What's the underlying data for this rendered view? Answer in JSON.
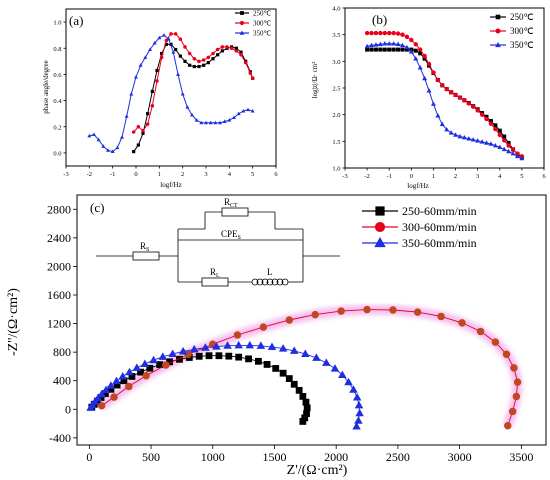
{
  "chart_data": [
    {
      "id": "a",
      "type": "line",
      "panel_label": "(a)",
      "xlabel": "logf/Hz",
      "ylabel": "phase angle/degree",
      "xlim": [
        -3,
        6
      ],
      "ylim": [
        -0.1,
        1.1
      ],
      "xticks": [
        -3,
        -2,
        -1,
        0,
        1,
        2,
        3,
        4,
        5,
        6
      ],
      "yticks": [
        0.0,
        0.2,
        0.4,
        0.6,
        0.8,
        1.0
      ],
      "ytick_labels": [
        "0.0",
        "0.2",
        "0.4",
        "0.6",
        "0.8",
        "1.0"
      ],
      "legend": "top-right",
      "series": [
        {
          "name": "250℃",
          "color": "#000000",
          "marker": "square",
          "x": [
            -0.1,
            0.1,
            0.3,
            0.5,
            0.7,
            0.9,
            1.1,
            1.3,
            1.5,
            1.7,
            1.9,
            2.1,
            2.3,
            2.5,
            2.7,
            2.9,
            3.1,
            3.3,
            3.5,
            3.7,
            3.9,
            4.1,
            4.3,
            4.5,
            4.7,
            4.9,
            5.0
          ],
          "y": [
            0.01,
            0.06,
            0.15,
            0.3,
            0.47,
            0.63,
            0.76,
            0.83,
            0.83,
            0.79,
            0.74,
            0.7,
            0.67,
            0.66,
            0.66,
            0.67,
            0.69,
            0.72,
            0.75,
            0.78,
            0.8,
            0.81,
            0.8,
            0.77,
            0.7,
            0.62,
            0.57
          ]
        },
        {
          "name": "300℃",
          "color": "#e8001c",
          "marker": "circle",
          "x": [
            -0.1,
            0.1,
            0.3,
            0.5,
            0.7,
            0.9,
            1.1,
            1.3,
            1.5,
            1.7,
            1.9,
            2.1,
            2.3,
            2.5,
            2.7,
            2.9,
            3.1,
            3.3,
            3.5,
            3.7,
            3.9,
            4.1,
            4.3,
            4.5,
            4.7,
            4.9,
            5.0
          ],
          "y": [
            0.16,
            0.2,
            0.17,
            0.22,
            0.36,
            0.55,
            0.73,
            0.86,
            0.91,
            0.91,
            0.87,
            0.81,
            0.76,
            0.72,
            0.7,
            0.71,
            0.73,
            0.76,
            0.79,
            0.81,
            0.81,
            0.8,
            0.78,
            0.75,
            0.69,
            0.61,
            0.57
          ]
        },
        {
          "name": "350℃",
          "color": "#1f2ee0",
          "marker": "triangle",
          "x": [
            -2.0,
            -1.8,
            -1.6,
            -1.4,
            -1.2,
            -1.0,
            -0.8,
            -0.6,
            -0.4,
            -0.2,
            0.0,
            0.2,
            0.4,
            0.6,
            0.8,
            1.0,
            1.2,
            1.4,
            1.6,
            1.8,
            2.0,
            2.2,
            2.4,
            2.6,
            2.8,
            3.0,
            3.2,
            3.4,
            3.6,
            3.8,
            4.0,
            4.2,
            4.4,
            4.6,
            4.8,
            5.0
          ],
          "y": [
            0.13,
            0.14,
            0.1,
            0.05,
            0.02,
            0.01,
            0.04,
            0.12,
            0.28,
            0.45,
            0.58,
            0.67,
            0.73,
            0.79,
            0.84,
            0.88,
            0.9,
            0.87,
            0.77,
            0.6,
            0.45,
            0.35,
            0.29,
            0.25,
            0.23,
            0.23,
            0.23,
            0.23,
            0.23,
            0.24,
            0.25,
            0.27,
            0.3,
            0.32,
            0.33,
            0.32
          ]
        }
      ]
    },
    {
      "id": "b",
      "type": "line",
      "panel_label": "(b)",
      "xlabel": "logf/Hz",
      "ylabel": "log|z|/Ω· cm²",
      "xlim": [
        -3,
        6
      ],
      "ylim": [
        1.0,
        4.0
      ],
      "xticks": [
        -3,
        -2,
        -1,
        0,
        1,
        2,
        3,
        4,
        5,
        6
      ],
      "yticks": [
        1.0,
        1.5,
        2.0,
        2.5,
        3.0,
        3.5,
        4.0
      ],
      "ytick_labels": [
        "1.0",
        "1.5",
        "2.0",
        "2.5",
        "3.0",
        "3.5",
        "4.0"
      ],
      "legend": "top-right",
      "series": [
        {
          "name": "250℃",
          "color": "#000000",
          "marker": "square",
          "x": [
            -2.0,
            -1.8,
            -1.6,
            -1.4,
            -1.2,
            -1.0,
            -0.8,
            -0.6,
            -0.4,
            -0.2,
            0.0,
            0.2,
            0.4,
            0.6,
            0.8,
            1.0,
            1.2,
            1.4,
            1.6,
            1.8,
            2.0,
            2.2,
            2.4,
            2.6,
            2.8,
            3.0,
            3.2,
            3.4,
            3.6,
            3.8,
            4.0,
            4.2,
            4.4,
            4.6,
            4.8,
            5.0
          ],
          "y": [
            3.22,
            3.22,
            3.22,
            3.22,
            3.22,
            3.22,
            3.22,
            3.22,
            3.22,
            3.22,
            3.22,
            3.2,
            3.15,
            3.05,
            2.92,
            2.78,
            2.65,
            2.55,
            2.48,
            2.42,
            2.37,
            2.32,
            2.27,
            2.22,
            2.16,
            2.1,
            2.03,
            1.96,
            1.88,
            1.8,
            1.7,
            1.59,
            1.47,
            1.35,
            1.26,
            1.2
          ]
        },
        {
          "name": "300℃",
          "color": "#e8001c",
          "marker": "circle",
          "x": [
            -2.0,
            -1.8,
            -1.6,
            -1.4,
            -1.2,
            -1.0,
            -0.8,
            -0.6,
            -0.4,
            -0.2,
            0.0,
            0.2,
            0.4,
            0.6,
            0.8,
            1.0,
            1.2,
            1.4,
            1.6,
            1.8,
            2.0,
            2.2,
            2.4,
            2.6,
            2.8,
            3.0,
            3.2,
            3.4,
            3.6,
            3.8,
            4.0,
            4.2,
            4.4,
            4.6,
            4.8,
            5.0
          ],
          "y": [
            3.53,
            3.53,
            3.53,
            3.53,
            3.53,
            3.53,
            3.53,
            3.52,
            3.5,
            3.46,
            3.4,
            3.32,
            3.22,
            3.1,
            2.95,
            2.79,
            2.65,
            2.55,
            2.48,
            2.42,
            2.37,
            2.32,
            2.27,
            2.21,
            2.15,
            2.08,
            2.0,
            1.92,
            1.83,
            1.73,
            1.62,
            1.52,
            1.42,
            1.34,
            1.27,
            1.22
          ]
        },
        {
          "name": "350℃",
          "color": "#1f2ee0",
          "marker": "triangle",
          "x": [
            -2.0,
            -1.8,
            -1.6,
            -1.4,
            -1.2,
            -1.0,
            -0.8,
            -0.6,
            -0.4,
            -0.2,
            0.0,
            0.2,
            0.4,
            0.6,
            0.8,
            1.0,
            1.2,
            1.4,
            1.6,
            1.8,
            2.0,
            2.2,
            2.4,
            2.6,
            2.8,
            3.0,
            3.2,
            3.4,
            3.6,
            3.8,
            4.0,
            4.2,
            4.4,
            4.6,
            4.8,
            5.0
          ],
          "y": [
            3.28,
            3.3,
            3.31,
            3.32,
            3.33,
            3.33,
            3.33,
            3.32,
            3.3,
            3.26,
            3.18,
            3.05,
            2.88,
            2.68,
            2.45,
            2.2,
            1.98,
            1.82,
            1.72,
            1.66,
            1.62,
            1.59,
            1.57,
            1.55,
            1.53,
            1.51,
            1.49,
            1.47,
            1.45,
            1.42,
            1.39,
            1.35,
            1.31,
            1.27,
            1.22,
            1.18
          ]
        }
      ]
    },
    {
      "id": "c",
      "type": "scatter",
      "panel_label": "(c)",
      "xlabel": "Z'/(Ω·cm²)",
      "ylabel": "-Z''/(Ω·cm²)",
      "xlim": [
        -100,
        3700
      ],
      "ylim": [
        -500,
        3000
      ],
      "xticks": [
        0,
        500,
        1000,
        1500,
        2000,
        2500,
        3000,
        3500
      ],
      "yticks": [
        -400,
        0,
        400,
        800,
        1200,
        1600,
        2000,
        2400,
        2800
      ],
      "legend": "top-right",
      "series": [
        {
          "name": "250-60mm/min",
          "color": "#000000",
          "marker": "square",
          "x": [
            20,
            40,
            65,
            95,
            130,
            175,
            225,
            280,
            345,
            415,
            490,
            570,
            650,
            730,
            810,
            890,
            970,
            1050,
            1130,
            1210,
            1290,
            1370,
            1440,
            1510,
            1570,
            1620,
            1660,
            1700,
            1730,
            1755,
            1765,
            1760,
            1745,
            1730
          ],
          "y": [
            30,
            70,
            115,
            165,
            220,
            280,
            340,
            400,
            460,
            520,
            575,
            625,
            665,
            700,
            725,
            742,
            750,
            750,
            744,
            730,
            706,
            672,
            628,
            572,
            505,
            430,
            350,
            265,
            180,
            100,
            20,
            -60,
            -120,
            -170
          ]
        },
        {
          "name": "300-60mm/min",
          "color": "#e8001c",
          "marker": "circle",
          "x": [
            100,
            200,
            320,
            460,
            620,
            800,
            1000,
            1200,
            1410,
            1620,
            1830,
            2040,
            2250,
            2460,
            2660,
            2850,
            3020,
            3170,
            3290,
            3380,
            3440,
            3470,
            3460,
            3430,
            3390
          ],
          "y": [
            50,
            170,
            320,
            470,
            620,
            770,
            910,
            1040,
            1150,
            1250,
            1325,
            1375,
            1395,
            1390,
            1360,
            1300,
            1210,
            1090,
            940,
            770,
            580,
            380,
            180,
            -30,
            -230
          ]
        },
        {
          "name": "350-60mm/min",
          "color": "#1f2ee0",
          "marker": "triangle",
          "x": [
            10,
            25,
            45,
            70,
            100,
            135,
            175,
            220,
            270,
            325,
            385,
            450,
            520,
            595,
            675,
            760,
            850,
            940,
            1030,
            1120,
            1210,
            1300,
            1390,
            1480,
            1570,
            1660,
            1750,
            1840,
            1920,
            1990,
            2050,
            2100,
            2140,
            2170,
            2185,
            2190,
            2180,
            2165
          ],
          "y": [
            20,
            60,
            105,
            155,
            210,
            270,
            330,
            395,
            460,
            520,
            580,
            635,
            688,
            735,
            775,
            810,
            840,
            862,
            878,
            890,
            895,
            895,
            888,
            873,
            850,
            818,
            775,
            720,
            650,
            570,
            480,
            380,
            275,
            165,
            55,
            -55,
            -160,
            -240
          ]
        }
      ],
      "circuit": {
        "labels": [
          "R_S",
          "R_CT",
          "CPE_S",
          "R_L",
          "L"
        ],
        "rs": "R",
        "rs_sub": "S",
        "rct": "R",
        "rct_sub": "CT",
        "cpe": "CPE",
        "cpe_sub": "S",
        "rl": "R",
        "rl_sub": "L",
        "ind": "L"
      }
    }
  ]
}
